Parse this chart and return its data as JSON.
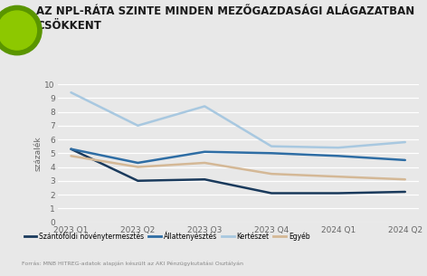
{
  "title_line1": "AZ NPL-RÁTA SZINTE MINDEN MEZŐGAZDASÁGI ALÁGAZATBAN",
  "title_line2": "CSÖKKENT",
  "ylabel": "százalék",
  "categories": [
    "2023 Q1",
    "2023 Q2",
    "2023 Q3",
    "2023 Q4",
    "2024 Q1",
    "2024 Q2"
  ],
  "series": [
    {
      "name": "Szántóföldi növénytermesztés",
      "values": [
        5.3,
        3.0,
        3.1,
        2.1,
        2.1,
        2.2
      ],
      "color": "#1a3a5c"
    },
    {
      "name": "Állattenyésztés",
      "values": [
        5.3,
        4.3,
        5.1,
        5.0,
        4.8,
        4.5
      ],
      "color": "#2e6da4"
    },
    {
      "name": "Kertészet",
      "values": [
        9.4,
        7.0,
        8.4,
        5.5,
        5.4,
        5.8
      ],
      "color": "#a8c8e0"
    },
    {
      "name": "Egyéb",
      "values": [
        4.8,
        4.0,
        4.3,
        3.5,
        3.3,
        3.1
      ],
      "color": "#d4b896"
    }
  ],
  "ylim": [
    0,
    10
  ],
  "yticks": [
    0,
    1,
    2,
    3,
    4,
    5,
    6,
    7,
    8,
    9,
    10
  ],
  "background_color": "#e8e8e8",
  "grid_color": "#ffffff",
  "title_color": "#1a1a1a",
  "title_fontsize": 8.5,
  "accent_color": "#b8d400",
  "circle_color_outer": "#6aaa00",
  "circle_color_inner": "#8dc800",
  "tick_color": "#666666",
  "linewidth": 1.8,
  "footer_text": "Forrás: MNB HITREG-adatok alapján készült az AKI Pénzügykutatási Osztályán"
}
